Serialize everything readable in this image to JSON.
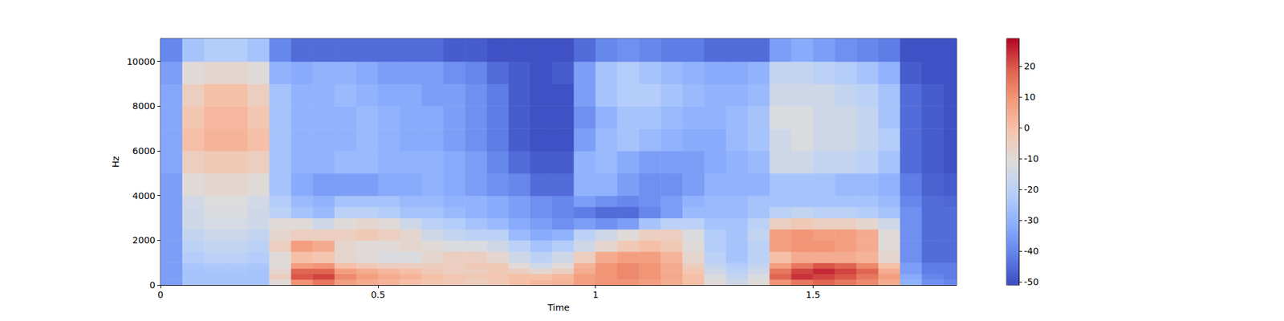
{
  "chart_data": {
    "type": "heatmap",
    "xlabel": "Time",
    "ylabel": "Hz",
    "xlim": [
      0,
      1.83
    ],
    "xticks": [
      0,
      0.5,
      1,
      1.5
    ],
    "ylim": [
      0,
      11025
    ],
    "yticks": [
      0,
      2000,
      4000,
      6000,
      8000,
      10000
    ],
    "grid": false,
    "x_edges": [
      0,
      0.05,
      0.1,
      0.15,
      0.2,
      0.25,
      0.3,
      0.35,
      0.4,
      0.45,
      0.5,
      0.55,
      0.6,
      0.65,
      0.7,
      0.75,
      0.8,
      0.85,
      0.9,
      0.95,
      1.0,
      1.05,
      1.1,
      1.15,
      1.2,
      1.25,
      1.3,
      1.35,
      1.4,
      1.45,
      1.5,
      1.55,
      1.6,
      1.65,
      1.7,
      1.75,
      1.8,
      1.83
    ],
    "y_edges": [
      0,
      250,
      500,
      750,
      1000,
      1500,
      2000,
      2500,
      3000,
      3500,
      4000,
      5000,
      6000,
      7000,
      8000,
      9000,
      10000,
      11025
    ],
    "cells": [
      [
        -35,
        -25,
        -25,
        -25,
        -25,
        -10,
        10,
        15,
        8,
        5,
        3,
        0,
        -2,
        -3,
        -5,
        -3,
        0,
        2,
        3,
        8,
        10,
        10,
        8,
        5,
        0,
        -10,
        -15,
        -10,
        10,
        15,
        18,
        15,
        12,
        5,
        -30,
        -38,
        -40
      ],
      [
        -35,
        -25,
        -25,
        -25,
        -25,
        -5,
        20,
        22,
        12,
        8,
        5,
        3,
        0,
        -2,
        -3,
        -2,
        0,
        0,
        2,
        8,
        10,
        12,
        10,
        6,
        0,
        -12,
        -18,
        -12,
        18,
        24,
        22,
        20,
        15,
        8,
        -32,
        -40,
        -42
      ],
      [
        -35,
        -25,
        -24,
        -24,
        -25,
        -8,
        18,
        18,
        8,
        5,
        2,
        0,
        -3,
        -5,
        -5,
        -3,
        -5,
        -8,
        -5,
        5,
        10,
        12,
        10,
        5,
        -2,
        -15,
        -20,
        -15,
        15,
        22,
        25,
        22,
        18,
        5,
        -35,
        -42,
        -42
      ],
      [
        -35,
        -24,
        -23,
        -23,
        -24,
        -10,
        8,
        10,
        0,
        -3,
        -5,
        -5,
        -5,
        -5,
        -3,
        -3,
        -10,
        -15,
        -10,
        3,
        10,
        12,
        10,
        5,
        -5,
        -18,
        -22,
        -18,
        8,
        15,
        20,
        18,
        12,
        0,
        -35,
        -42,
        -42
      ],
      [
        -35,
        -22,
        -20,
        -20,
        -22,
        -10,
        0,
        -2,
        -8,
        -10,
        -12,
        -12,
        -8,
        -5,
        -5,
        -8,
        -15,
        -20,
        -15,
        -5,
        5,
        8,
        8,
        3,
        -8,
        -20,
        -25,
        -20,
        0,
        5,
        5,
        5,
        3,
        -8,
        -38,
        -45,
        -45
      ],
      [
        -35,
        -20,
        -18,
        -18,
        -20,
        -5,
        8,
        5,
        -8,
        -10,
        -10,
        -8,
        -10,
        -12,
        -12,
        -15,
        -20,
        -25,
        -22,
        -15,
        -8,
        -3,
        0,
        -3,
        -10,
        -22,
        -25,
        -20,
        8,
        10,
        10,
        8,
        5,
        -10,
        -38,
        -45,
        -45
      ],
      [
        -35,
        -18,
        -16,
        -16,
        -18,
        -8,
        -5,
        -5,
        -5,
        -3,
        -5,
        -8,
        -15,
        -18,
        -20,
        -20,
        -28,
        -32,
        -30,
        -20,
        -15,
        -10,
        -5,
        -5,
        -12,
        -22,
        -25,
        -18,
        8,
        10,
        8,
        8,
        5,
        -10,
        -38,
        -45,
        -45
      ],
      [
        -35,
        -15,
        -13,
        -13,
        -15,
        -10,
        -10,
        -15,
        -10,
        -8,
        -10,
        -15,
        -20,
        -22,
        -25,
        -28,
        -32,
        -35,
        -38,
        -35,
        -38,
        -35,
        -25,
        -20,
        -20,
        -25,
        -25,
        -20,
        -5,
        -3,
        -5,
        -5,
        -8,
        -15,
        -38,
        -45,
        -45
      ],
      [
        -35,
        -15,
        -12,
        -12,
        -15,
        -20,
        -25,
        -28,
        -20,
        -20,
        -22,
        -25,
        -25,
        -28,
        -30,
        -32,
        -35,
        -38,
        -40,
        -42,
        -45,
        -45,
        -40,
        -35,
        -28,
        -28,
        -28,
        -25,
        -20,
        -18,
        -20,
        -20,
        -22,
        -25,
        -38,
        -45,
        -45
      ],
      [
        -35,
        -14,
        -11,
        -11,
        -14,
        -22,
        -28,
        -30,
        -25,
        -25,
        -25,
        -28,
        -28,
        -30,
        -30,
        -32,
        -35,
        -38,
        -40,
        -35,
        -38,
        -40,
        -38,
        -35,
        -30,
        -28,
        -28,
        -25,
        -25,
        -25,
        -25,
        -25,
        -25,
        -28,
        -40,
        -45,
        -46
      ],
      [
        -35,
        -10,
        -8,
        -8,
        -10,
        -25,
        -32,
        -35,
        -35,
        -35,
        -32,
        -32,
        -30,
        -32,
        -35,
        -38,
        -40,
        -45,
        -45,
        -30,
        -30,
        -35,
        -38,
        -38,
        -35,
        -30,
        -30,
        -30,
        -25,
        -25,
        -25,
        -28,
        -28,
        -30,
        -42,
        -47,
        -48
      ],
      [
        -33,
        -5,
        -3,
        -3,
        -5,
        -25,
        -30,
        -30,
        -28,
        -28,
        -30,
        -30,
        -30,
        -32,
        -35,
        -40,
        -45,
        -48,
        -48,
        -30,
        -28,
        -32,
        -35,
        -35,
        -35,
        -32,
        -30,
        -28,
        -15,
        -15,
        -18,
        -18,
        -20,
        -25,
        -45,
        -48,
        -50
      ],
      [
        -33,
        0,
        3,
        3,
        0,
        -25,
        -30,
        -30,
        -30,
        -28,
        -30,
        -32,
        -32,
        -35,
        -38,
        -42,
        -48,
        -50,
        -50,
        -35,
        -28,
        -25,
        -28,
        -30,
        -32,
        -32,
        -28,
        -25,
        -15,
        -12,
        -15,
        -15,
        -18,
        -22,
        -45,
        -48,
        -50
      ],
      [
        -33,
        -2,
        2,
        2,
        -2,
        -25,
        -30,
        -30,
        -30,
        -28,
        -30,
        -32,
        -32,
        -35,
        -38,
        -42,
        -48,
        -50,
        -50,
        -38,
        -30,
        -25,
        -25,
        -28,
        -30,
        -30,
        -28,
        -25,
        -12,
        -12,
        -15,
        -15,
        -18,
        -25,
        -45,
        -48,
        -50
      ],
      [
        -33,
        -5,
        0,
        0,
        -5,
        -25,
        -30,
        -30,
        -28,
        -30,
        -32,
        -32,
        -35,
        -35,
        -38,
        -42,
        -48,
        -50,
        -50,
        -35,
        -25,
        -22,
        -22,
        -25,
        -28,
        -30,
        -30,
        -28,
        -15,
        -15,
        -15,
        -18,
        -20,
        -25,
        -45,
        -48,
        -50
      ],
      [
        -35,
        -10,
        -8,
        -8,
        -10,
        -30,
        -32,
        -30,
        -30,
        -32,
        -35,
        -35,
        -35,
        -38,
        -40,
        -45,
        -48,
        -50,
        -48,
        -35,
        -25,
        -22,
        -25,
        -28,
        -30,
        -32,
        -32,
        -30,
        -18,
        -18,
        -20,
        -22,
        -25,
        -30,
        -48,
        -50,
        -50
      ],
      [
        -40,
        -25,
        -22,
        -22,
        -25,
        -40,
        -45,
        -45,
        -45,
        -45,
        -45,
        -45,
        -45,
        -48,
        -48,
        -50,
        -50,
        -50,
        -50,
        -45,
        -40,
        -38,
        -40,
        -42,
        -42,
        -45,
        -45,
        -45,
        -35,
        -32,
        -35,
        -38,
        -40,
        -42,
        -50,
        -50,
        -50
      ]
    ],
    "colorbar": {
      "range": [
        -51,
        29
      ],
      "ticks": [
        -50,
        -40,
        -30,
        -20,
        -10,
        0,
        10,
        20
      ]
    }
  }
}
